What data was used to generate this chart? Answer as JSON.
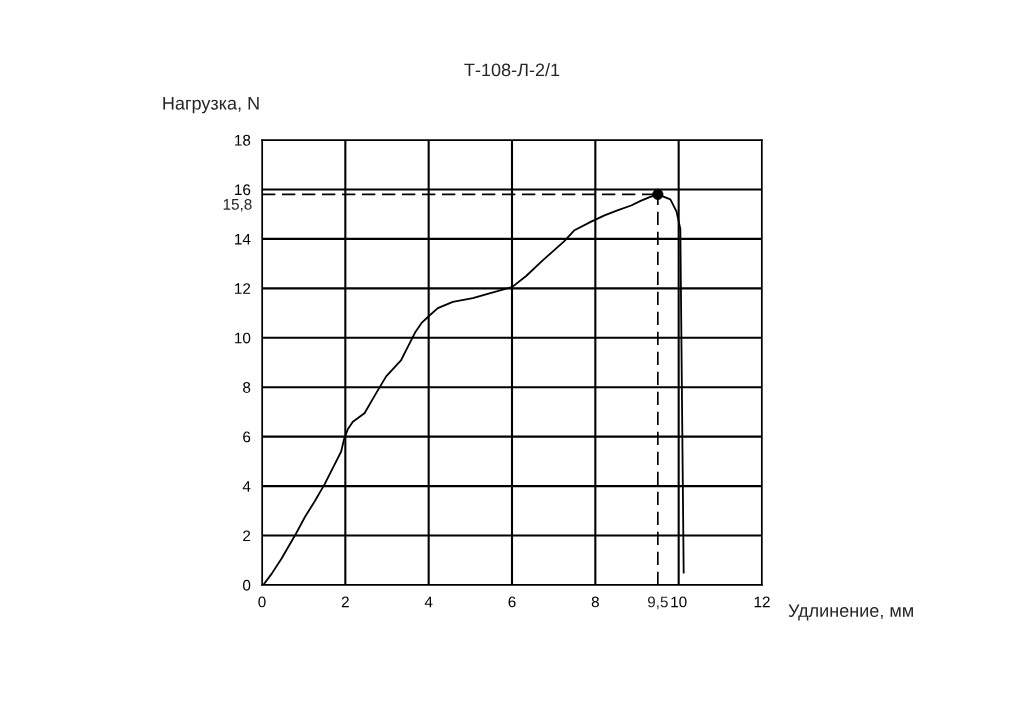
{
  "chart_data": {
    "type": "line",
    "title": "Т-108-Л-2/1",
    "xlabel": "Удлинение, мм",
    "ylabel": "Нагрузка, N",
    "xlim": [
      0,
      12
    ],
    "xticks": [
      0,
      2,
      4,
      6,
      8,
      10,
      12
    ],
    "ylim": [
      0,
      18
    ],
    "yticks": [
      0,
      2,
      4,
      6,
      8,
      10,
      12,
      14,
      16,
      18
    ],
    "grid": true,
    "series": [
      {
        "color": "#000000",
        "x": [
          0.03,
          0.23,
          0.47,
          0.79,
          1.03,
          1.27,
          1.51,
          1.75,
          1.9,
          1.97,
          2.06,
          2.18,
          2.46,
          2.74,
          2.98,
          3.34,
          3.46,
          3.67,
          3.83,
          4.02,
          4.22,
          4.58,
          5.06,
          5.46,
          6.0,
          6.34,
          6.75,
          7.25,
          7.5,
          7.9,
          8.22,
          8.53,
          8.86,
          9.1,
          9.32,
          9.5,
          9.8,
          9.95,
          10.04,
          10.12
        ],
        "values": [
          0.0,
          0.45,
          1.07,
          2.0,
          2.75,
          3.4,
          4.1,
          4.9,
          5.4,
          5.9,
          6.3,
          6.6,
          6.95,
          7.76,
          8.44,
          9.1,
          9.5,
          10.2,
          10.6,
          10.9,
          11.2,
          11.45,
          11.6,
          11.8,
          12.05,
          12.5,
          13.15,
          13.9,
          14.35,
          14.7,
          14.95,
          15.15,
          15.35,
          15.55,
          15.7,
          15.8,
          15.6,
          15.1,
          14.4,
          0.5
        ]
      },
      {
        "type": "scatter",
        "color": "#000000",
        "marker": "circle",
        "x": [
          9.5
        ],
        "values": [
          15.8
        ]
      }
    ],
    "ref_lines": [
      {
        "axis": "y",
        "value": 15.8,
        "label": "15,8",
        "line_style": "dashed",
        "color": "#000000"
      },
      {
        "axis": "x",
        "value": 9.5,
        "label": "9,5",
        "line_style": "dashed",
        "color": "#000000"
      }
    ]
  }
}
